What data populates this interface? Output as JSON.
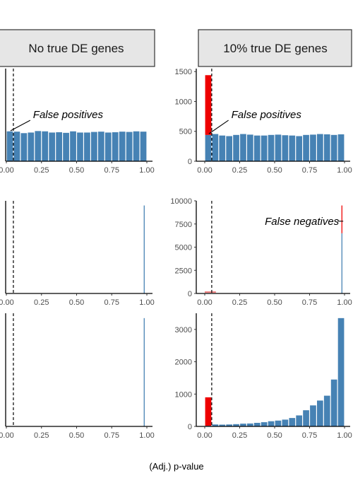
{
  "chart_data": {
    "type": "bar",
    "xlabel": "(Adj.) p-value",
    "colors": {
      "blue": "#4682b4",
      "red": "#ee0000",
      "strip": "#e6e6e6"
    },
    "strips": [
      "No true DE genes",
      "10% true DE genes"
    ],
    "threshold": 0.05,
    "panels": [
      {
        "id": "r1c1",
        "row": 0,
        "col": 0,
        "xlim": [
          0,
          1
        ],
        "ylim": [
          0,
          1550
        ],
        "xticks": [
          "0.00",
          "0.25",
          "0.50",
          "0.75",
          "1.00"
        ],
        "yticks": [],
        "bin_width": 0.05,
        "bin_start": 0,
        "blue": [
          500,
          495,
          470,
          480,
          505,
          500,
          480,
          485,
          475,
          500,
          480,
          480,
          490,
          495,
          480,
          485,
          495,
          490,
          500,
          495
        ],
        "red": [],
        "annotation": {
          "text": "False positives",
          "x": 0.19,
          "y": 780,
          "arrow_to": [
            0.03,
            510
          ]
        }
      },
      {
        "id": "r1c2",
        "row": 0,
        "col": 1,
        "xlim": [
          0,
          1
        ],
        "ylim": [
          0,
          1550
        ],
        "xticks": [
          "0.00",
          "0.25",
          "0.50",
          "0.75",
          "1.00"
        ],
        "yticks": [
          0,
          500,
          1000,
          1500
        ],
        "bin_width": 0.05,
        "bin_start": 0,
        "blue": [
          440,
          455,
          430,
          420,
          440,
          455,
          445,
          430,
          430,
          440,
          445,
          435,
          430,
          420,
          440,
          445,
          455,
          450,
          440,
          450
        ],
        "red": [
          1000,
          0,
          0,
          0,
          0,
          0,
          0,
          0,
          0,
          0,
          0,
          0,
          0,
          0,
          0,
          0,
          0,
          0,
          0,
          0
        ],
        "annotation": {
          "text": "False positives",
          "x": 0.19,
          "y": 780,
          "arrow_to": [
            0.03,
            460
          ]
        }
      },
      {
        "id": "r2c1",
        "row": 1,
        "col": 0,
        "xlim": [
          0,
          1
        ],
        "ylim": [
          0,
          10000
        ],
        "xticks": [
          "0.00",
          "0.25",
          "0.50",
          "0.75",
          "1.00"
        ],
        "yticks": [],
        "bin_width": 0.0125,
        "bin_start": 0.975,
        "blue": [
          9500
        ],
        "red": []
      },
      {
        "id": "r2c2",
        "row": 1,
        "col": 1,
        "xlim": [
          0,
          1
        ],
        "ylim": [
          0,
          10000
        ],
        "xticks": [
          "0.00",
          "0.25",
          "0.50",
          "0.75",
          "1.00"
        ],
        "yticks": [
          0,
          2500,
          5000,
          7500,
          10000
        ],
        "bin_width": 0.0125,
        "bin_start": 0.975,
        "blue": [
          6500
        ],
        "red": [
          3000
        ],
        "low_segment": {
          "x0": 0.0,
          "x1": 0.08,
          "y": 150
        },
        "annotation": {
          "text": "False negatives",
          "x": 0.43,
          "y": 7800,
          "arrow_to": [
            0.95,
            7800
          ]
        }
      },
      {
        "id": "r3c1",
        "row": 2,
        "col": 0,
        "xlim": [
          0,
          1
        ],
        "ylim": [
          0,
          3500
        ],
        "xticks": [
          "0.00",
          "0.25",
          "0.50",
          "0.75",
          "1.00"
        ],
        "yticks": [],
        "bin_width": 0.0125,
        "bin_start": 0.975,
        "blue": [
          3350
        ],
        "red": []
      },
      {
        "id": "r3c2",
        "row": 2,
        "col": 1,
        "xlim": [
          0,
          1
        ],
        "ylim": [
          0,
          3500
        ],
        "xticks": [
          "0.00",
          "0.25",
          "0.50",
          "0.75",
          "1.00"
        ],
        "yticks": [
          0,
          1000,
          2000,
          3000
        ],
        "bin_width": 0.05,
        "bin_start": 0,
        "blue": [
          20,
          60,
          55,
          60,
          70,
          85,
          90,
          110,
          130,
          160,
          180,
          210,
          260,
          340,
          500,
          650,
          800,
          950,
          1450,
          3350
        ],
        "red": [
          880,
          0,
          0,
          0,
          0,
          0,
          0,
          0,
          0,
          0,
          0,
          0,
          0,
          0,
          0,
          0,
          0,
          0,
          0,
          0
        ]
      }
    ]
  }
}
